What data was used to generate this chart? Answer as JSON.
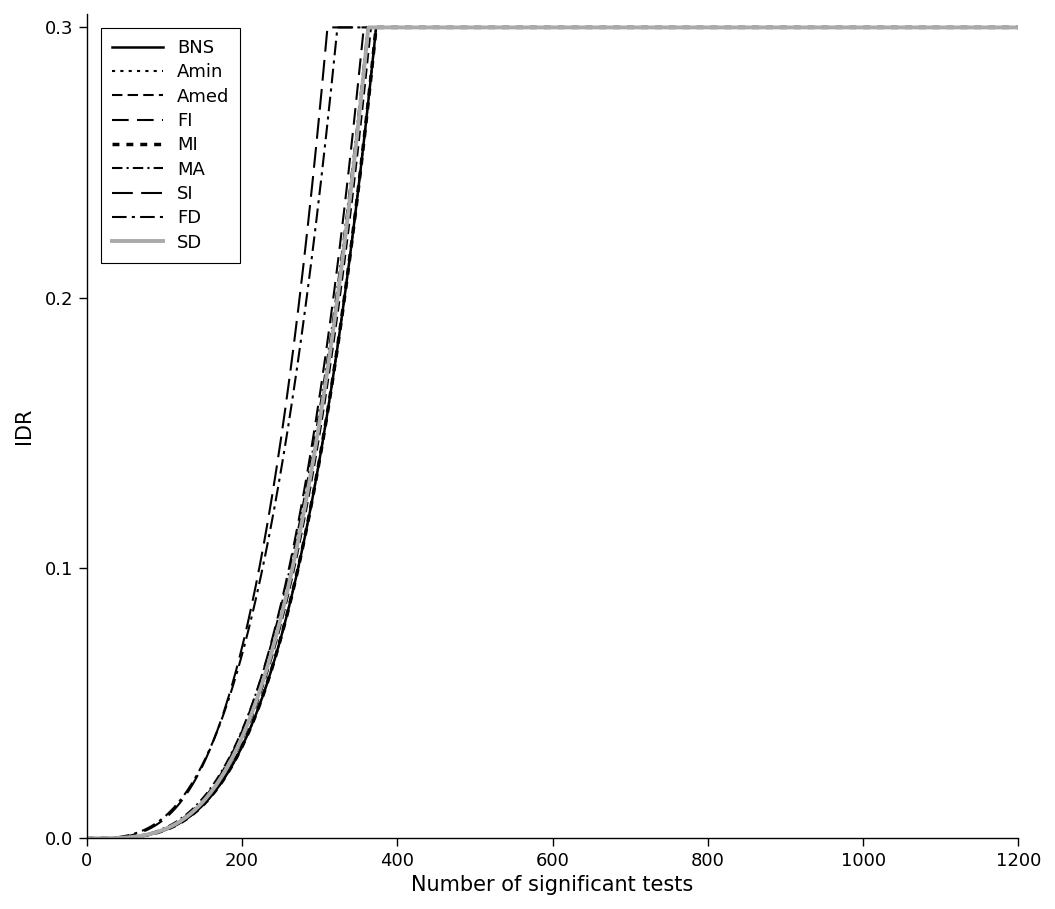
{
  "title": "",
  "xlabel": "Number of significant tests",
  "ylabel": "IDR",
  "xlim": [
    0,
    1200
  ],
  "ylim": [
    0,
    0.305
  ],
  "yticks": [
    0.0,
    0.1,
    0.2,
    0.3
  ],
  "xticks": [
    0,
    200,
    400,
    600,
    800,
    1000,
    1200
  ],
  "background_color": "#ffffff",
  "curves": [
    {
      "label": "BNS",
      "color": "#000000",
      "linestyle": "solid",
      "dash": null,
      "linewidth": 1.8,
      "a": 3e-10,
      "p": 3.5,
      "shift": 0
    },
    {
      "label": "Amin",
      "color": "#000000",
      "linestyle": "dotted",
      "dash": [
        1.5,
        2.5
      ],
      "linewidth": 1.5,
      "a": 3e-10,
      "p": 3.5,
      "shift": 0
    },
    {
      "label": "Amed",
      "color": "#000000",
      "linestyle": "dashed",
      "dash": [
        5,
        2.5
      ],
      "linewidth": 1.5,
      "a": 3.2e-10,
      "p": 3.5,
      "shift": 0
    },
    {
      "label": "FI",
      "color": "#000000",
      "linestyle": "dashed",
      "dash": [
        8,
        4
      ],
      "linewidth": 1.5,
      "a": 3.5e-10,
      "p": 3.5,
      "shift": 0
    },
    {
      "label": "MI",
      "color": "#000000",
      "linestyle": "dotted",
      "dash": [
        2.0,
        2.0
      ],
      "linewidth": 2.5,
      "a": 3e-10,
      "p": 3.5,
      "shift": 0
    },
    {
      "label": "MA",
      "color": "#000000",
      "linestyle": "dashdot",
      "dash": [
        5,
        2,
        1,
        2
      ],
      "linewidth": 1.5,
      "a": 6e-10,
      "p": 3.4,
      "shift": 0
    },
    {
      "label": "SI",
      "color": "#000000",
      "linestyle": "dashed",
      "dash": [
        10,
        4
      ],
      "linewidth": 1.5,
      "a": 1.8e-09,
      "p": 3.3,
      "shift": 0
    },
    {
      "label": "FD",
      "color": "#000000",
      "linestyle": "dashdot",
      "dash": [
        7,
        2.5,
        1.5,
        2.5
      ],
      "linewidth": 1.5,
      "a": 5e-09,
      "p": 3.1,
      "shift": 0
    },
    {
      "label": "SD",
      "color": "#aaaaaa",
      "linestyle": "solid",
      "dash": null,
      "linewidth": 2.8,
      "a": 3.3e-10,
      "p": 3.5,
      "shift": 0
    }
  ]
}
